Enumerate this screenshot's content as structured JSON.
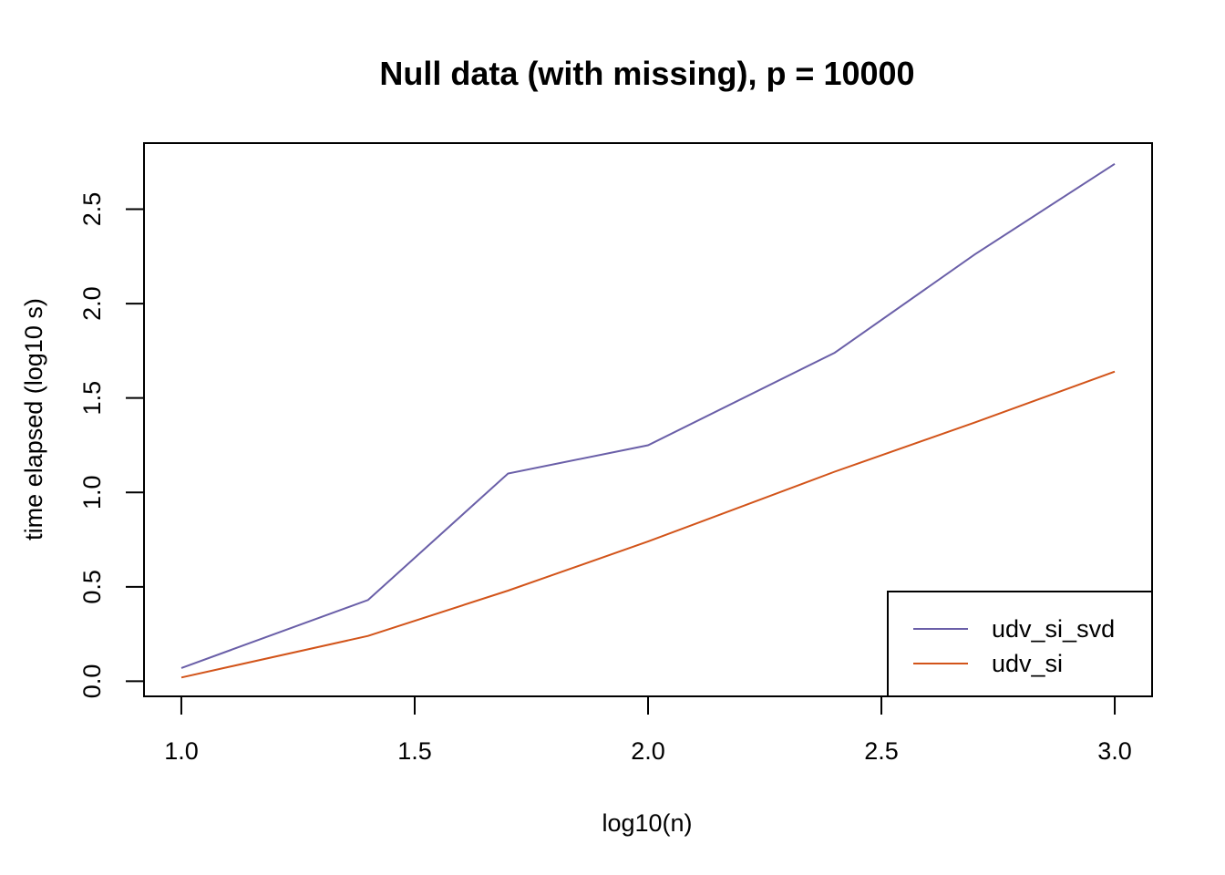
{
  "chart_data": {
    "type": "line",
    "title": "Null data (with missing), p = 10000",
    "xlabel": "log10(n)",
    "ylabel": "time elapsed (log10 s)",
    "xlim": [
      0.92,
      3.08
    ],
    "ylim": [
      -0.08,
      2.85
    ],
    "x_ticks": [
      1.0,
      1.5,
      2.0,
      2.5,
      3.0
    ],
    "x_tick_labels": [
      "1.0",
      "1.5",
      "2.0",
      "2.5",
      "3.0"
    ],
    "y_ticks": [
      0.0,
      0.5,
      1.0,
      1.5,
      2.0,
      2.5
    ],
    "y_tick_labels": [
      "0.0",
      "0.5",
      "1.0",
      "1.5",
      "2.0",
      "2.5"
    ],
    "grid": false,
    "legend_position": "bottom-right",
    "x": [
      1.0,
      1.4,
      1.7,
      2.0,
      2.4,
      2.7,
      3.0
    ],
    "series": [
      {
        "name": "udv_si_svd",
        "color": "#6a5fa8",
        "values": [
          0.07,
          0.43,
          1.1,
          1.25,
          1.74,
          2.26,
          2.74
        ]
      },
      {
        "name": "udv_si",
        "color": "#d2541a",
        "values": [
          0.02,
          0.24,
          0.48,
          0.74,
          1.11,
          1.37,
          1.64
        ]
      }
    ]
  }
}
